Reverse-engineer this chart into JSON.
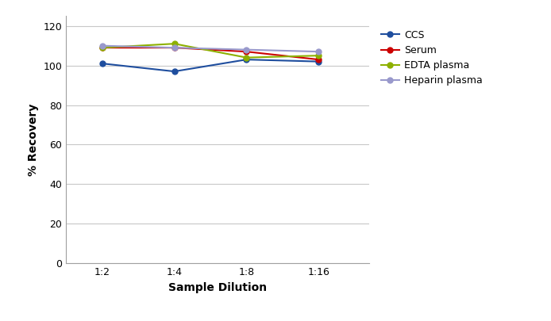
{
  "x_labels": [
    "1:2",
    "1:4",
    "1:8",
    "1:16"
  ],
  "x_positions": [
    1,
    2,
    3,
    4
  ],
  "series": [
    {
      "name": "CCS",
      "color": "#1f4e9e",
      "values": [
        101,
        97,
        103,
        102
      ]
    },
    {
      "name": "Serum",
      "color": "#cc0000",
      "values": [
        109,
        109,
        107,
        103
      ]
    },
    {
      "name": "EDTA plasma",
      "color": "#8db000",
      "values": [
        109,
        111,
        104,
        105
      ]
    },
    {
      "name": "Heparin plasma",
      "color": "#9999cc",
      "values": [
        110,
        109,
        108,
        107
      ]
    }
  ],
  "ylabel": "% Recovery",
  "xlabel": "Sample Dilution",
  "ylim": [
    0,
    125
  ],
  "yticks": [
    0,
    20,
    40,
    60,
    80,
    100,
    120
  ],
  "bg_color": "#ffffff",
  "grid_color": "#c8c8c8",
  "marker": "o",
  "marker_size": 5,
  "line_width": 1.5
}
